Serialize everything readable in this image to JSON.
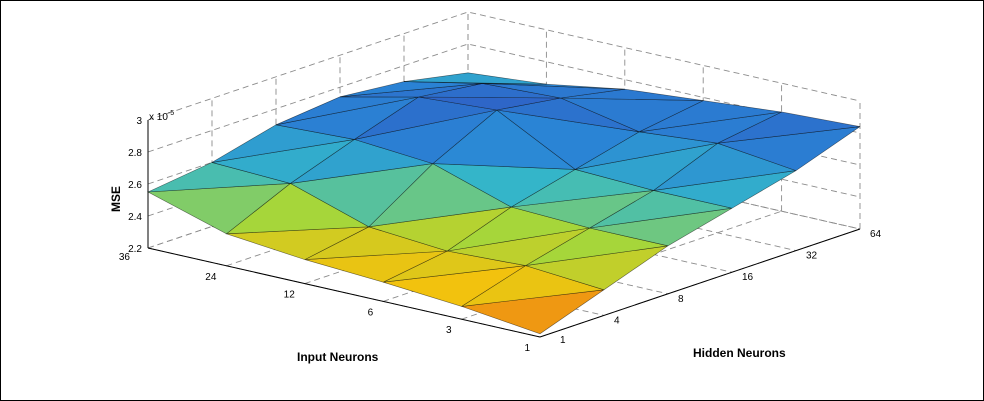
{
  "chart_data": {
    "type": "surface",
    "title": "",
    "xlabel": "Input Neurons",
    "ylabel": "Hidden Neurons",
    "zlabel": "MSE",
    "z_exponent_label": "x 10",
    "z_exponent": "-5",
    "x_ticks": [
      "36",
      "24",
      "12",
      "6",
      "3",
      "1"
    ],
    "y_ticks": [
      "1",
      "4",
      "8",
      "16",
      "32",
      "64"
    ],
    "z_ticks": [
      "2.2",
      "2.4",
      "2.6",
      "2.8",
      "3"
    ],
    "zlim": [
      2.2,
      3.0
    ],
    "grid": true,
    "z_values": [
      [
        2.55,
        2.6,
        2.7,
        2.74,
        2.7,
        2.62
      ],
      [
        2.4,
        2.58,
        2.72,
        2.85,
        2.8,
        2.66
      ],
      [
        2.35,
        2.42,
        2.68,
        2.88,
        2.82,
        2.74
      ],
      [
        2.32,
        2.38,
        2.52,
        2.62,
        2.72,
        2.78
      ],
      [
        2.28,
        2.4,
        2.5,
        2.6,
        2.76,
        2.82
      ],
      [
        2.22,
        2.36,
        2.5,
        2.6,
        2.7,
        2.84
      ]
    ],
    "colormap": [
      "#3f45b8",
      "#2e62c6",
      "#2a86d6",
      "#35b8c8",
      "#a6d63a",
      "#f2c20e",
      "#e84a1a"
    ]
  }
}
